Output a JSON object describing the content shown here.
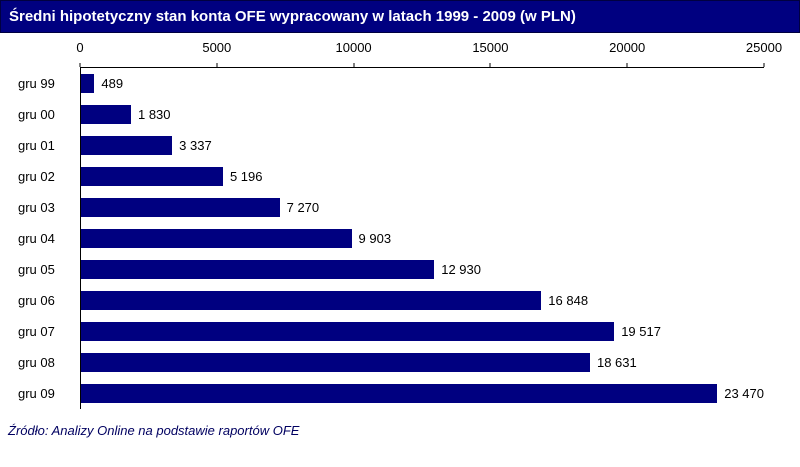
{
  "title_bar": {
    "text": "Średni hipotetyczny stan konta OFE wypracowany w latach 1999 - 2009 (w PLN)",
    "bg_color": "#000080",
    "text_color": "#FFFFFF"
  },
  "chart_data": {
    "type": "bar",
    "orientation": "horizontal",
    "title": "Średni hipotetyczny stan konta OFE wypracowany w latach 1999 - 2009 (w PLN)",
    "categories": [
      "gru 99",
      "gru 00",
      "gru 01",
      "gru 02",
      "gru 03",
      "gru 04",
      "gru 05",
      "gru 06",
      "gru 07",
      "gru 08",
      "gru 09"
    ],
    "values": [
      489,
      1830,
      3337,
      5196,
      7270,
      9903,
      12930,
      16848,
      19517,
      18631,
      23470
    ],
    "value_labels": [
      "489",
      "1 830",
      "3 337",
      "5 196",
      "7 270",
      "9 903",
      "12 930",
      "16 848",
      "19 517",
      "18 631",
      "23 470"
    ],
    "x_ticks": [
      0,
      5000,
      10000,
      15000,
      20000,
      25000
    ],
    "x_tick_labels": [
      "0",
      "5000",
      "10000",
      "15000",
      "20000",
      "25000"
    ],
    "xlim": [
      0,
      25000
    ],
    "xlabel": "",
    "ylabel": "",
    "bar_color": "#000080",
    "axis_position": "top",
    "grid": false,
    "legend": false
  },
  "footer": {
    "source_text": "Źródło: Analizy Online na podstawie raportów OFE"
  }
}
